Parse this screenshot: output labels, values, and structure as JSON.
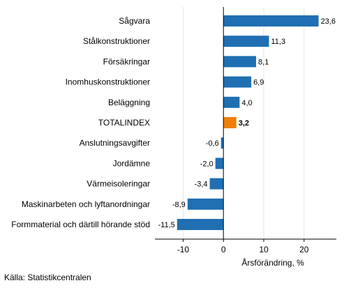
{
  "chart_data": {
    "type": "bar",
    "orientation": "horizontal",
    "categories": [
      "Sågvara",
      "Stålkonstruktioner",
      "Försäkringar",
      "Inomhuskonstruktioner",
      "Beläggning",
      "TOTALINDEX",
      "Anslutningsavgifter",
      "Jordämne",
      "Värmeisoleringar",
      "Maskinarbeten och lyftanordningar",
      "Formmaterial och därtill hörande stöd"
    ],
    "values": [
      23.6,
      11.3,
      8.1,
      6.9,
      4.0,
      3.2,
      -0.6,
      -2.0,
      -3.4,
      -8.9,
      -11.5
    ],
    "value_labels": [
      "23,6",
      "11,3",
      "8,1",
      "6,9",
      "4,0",
      "3,2",
      "-0,6",
      "-2,0",
      "-3,4",
      "-8,9",
      "-11,5"
    ],
    "highlight_category": "TOTALINDEX",
    "colors": {
      "default": "#1f6fb2",
      "highlight": "#f07f09",
      "zero_line": "#000000",
      "grid": "#e6e6e6"
    },
    "xlabel": "Årsförändring, %",
    "xlim": [
      -17,
      28
    ],
    "xticks": [
      -10,
      0,
      10,
      20
    ],
    "xtick_labels": [
      "-10",
      "0",
      "10",
      "20"
    ],
    "grid": true
  },
  "footer": {
    "source": "Källa: Statistikcentralen"
  }
}
